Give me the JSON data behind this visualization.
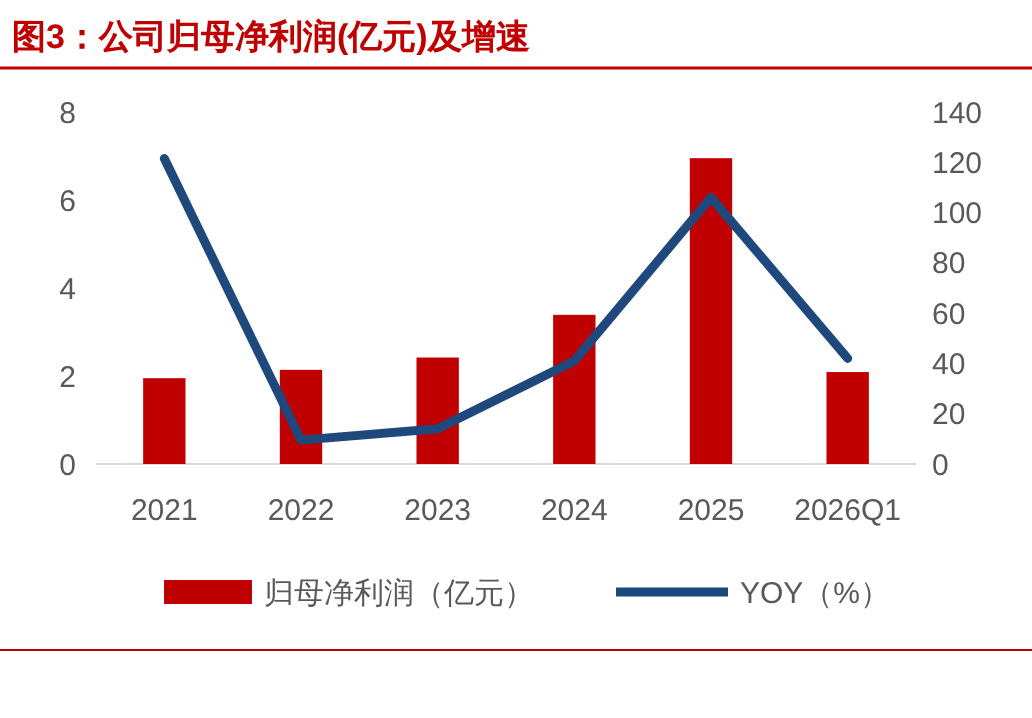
{
  "chart_data": {
    "type": "bar",
    "title": "图3：公司归母净利润(亿元)及增速",
    "categories": [
      "2021",
      "2022",
      "2023",
      "2024",
      "2025",
      "2026Q1"
    ],
    "series": [
      {
        "name": "归母净利润（亿元）",
        "color": "#c00000",
        "values": [
          1.95,
          2.14,
          2.42,
          3.39,
          6.95,
          2.09
        ]
      },
      {
        "name": "YOY（%）",
        "color": "#1f497d",
        "type": "line",
        "axis": "y2",
        "values": [
          121.5,
          9.5,
          14,
          41,
          106,
          42
        ]
      }
    ],
    "ylim": [
      0,
      8
    ],
    "yticks": [
      0,
      2,
      4,
      6,
      8
    ],
    "y2lim": [
      0,
      140
    ],
    "y2ticks": [
      0,
      20,
      40,
      60,
      80,
      100,
      120,
      140
    ],
    "grid": false,
    "legend": "bottom",
    "marker": "none",
    "line_style": "solid"
  }
}
